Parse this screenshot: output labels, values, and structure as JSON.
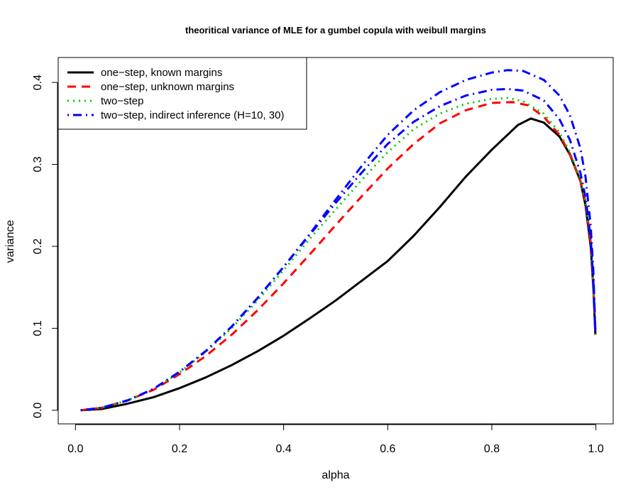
{
  "chart_data": {
    "type": "line",
    "title": "theoritical variance of MLE for a gumbel copula with weibull margins",
    "xlabel": "alpha",
    "ylabel": "variance",
    "xlim": [
      -0.0332,
      1.0332
    ],
    "ylim": [
      -0.0166,
      0.4304
    ],
    "xticks": [
      0.0,
      0.2,
      0.4,
      0.6,
      0.8,
      1.0
    ],
    "xtick_labels": [
      "0.0",
      "0.2",
      "0.4",
      "0.6",
      "0.8",
      "1.0"
    ],
    "yticks": [
      0.0,
      0.1,
      0.2,
      0.3,
      0.4
    ],
    "ytick_labels": [
      "0.0",
      "0.1",
      "0.2",
      "0.3",
      "0.4"
    ],
    "grid": false,
    "legend_position": "top-left",
    "series": [
      {
        "name": "one−step, known margins",
        "color": "#000000",
        "dash": "solid",
        "x": [
          0.01,
          0.05,
          0.1,
          0.15,
          0.2,
          0.25,
          0.3,
          0.35,
          0.4,
          0.45,
          0.5,
          0.55,
          0.6,
          0.65,
          0.7,
          0.75,
          0.8,
          0.85,
          0.875,
          0.9,
          0.93,
          0.95,
          0.97,
          0.98,
          0.99,
          0.995,
          0.999
        ],
        "y": [
          0.0,
          0.0015,
          0.008,
          0.016,
          0.027,
          0.04,
          0.055,
          0.072,
          0.091,
          0.112,
          0.134,
          0.158,
          0.182,
          0.213,
          0.248,
          0.285,
          0.318,
          0.348,
          0.356,
          0.351,
          0.334,
          0.312,
          0.28,
          0.25,
          0.2,
          0.15,
          0.092
        ]
      },
      {
        "name": "one−step, unknown margins",
        "color": "#ff0000",
        "dash": "dashed",
        "x": [
          0.01,
          0.05,
          0.1,
          0.15,
          0.2,
          0.25,
          0.3,
          0.35,
          0.4,
          0.45,
          0.5,
          0.55,
          0.6,
          0.65,
          0.7,
          0.75,
          0.8,
          0.84,
          0.87,
          0.9,
          0.93,
          0.95,
          0.97,
          0.98,
          0.99,
          0.995,
          0.999
        ],
        "y": [
          0.0,
          0.003,
          0.012,
          0.025,
          0.044,
          0.066,
          0.092,
          0.122,
          0.155,
          0.19,
          0.226,
          0.261,
          0.295,
          0.325,
          0.35,
          0.366,
          0.375,
          0.376,
          0.372,
          0.358,
          0.336,
          0.313,
          0.28,
          0.255,
          0.205,
          0.155,
          0.092
        ]
      },
      {
        "name": "two−step",
        "color": "#00cd00",
        "dash": "dotted",
        "x": [
          0.01,
          0.05,
          0.1,
          0.15,
          0.2,
          0.25,
          0.3,
          0.35,
          0.4,
          0.45,
          0.5,
          0.55,
          0.6,
          0.65,
          0.7,
          0.75,
          0.8,
          0.83,
          0.86,
          0.9,
          0.93,
          0.95,
          0.97,
          0.98,
          0.99,
          0.995,
          0.999
        ],
        "y": [
          0.0,
          0.003,
          0.012,
          0.026,
          0.046,
          0.071,
          0.1,
          0.134,
          0.171,
          0.209,
          0.245,
          0.281,
          0.315,
          0.343,
          0.362,
          0.374,
          0.38,
          0.381,
          0.377,
          0.362,
          0.339,
          0.315,
          0.282,
          0.255,
          0.205,
          0.155,
          0.092
        ]
      },
      {
        "name": "two−step, indirect inference (H=10, 30)",
        "color": "#0000ff",
        "dash": "dotdash",
        "x": [
          0.01,
          0.05,
          0.1,
          0.15,
          0.2,
          0.25,
          0.3,
          0.35,
          0.4,
          0.45,
          0.5,
          0.55,
          0.6,
          0.65,
          0.7,
          0.75,
          0.8,
          0.83,
          0.86,
          0.9,
          0.93,
          0.95,
          0.97,
          0.98,
          0.99,
          0.995,
          0.999
        ],
        "y": [
          0.0,
          0.003,
          0.012,
          0.026,
          0.047,
          0.072,
          0.102,
          0.137,
          0.175,
          0.214,
          0.253,
          0.29,
          0.325,
          0.352,
          0.371,
          0.384,
          0.391,
          0.392,
          0.39,
          0.378,
          0.355,
          0.33,
          0.29,
          0.26,
          0.21,
          0.16,
          0.095
        ]
      },
      {
        "name": "",
        "color": "#0000ff",
        "dash": "dotdash",
        "x": [
          0.01,
          0.05,
          0.1,
          0.15,
          0.2,
          0.25,
          0.3,
          0.35,
          0.4,
          0.45,
          0.5,
          0.55,
          0.6,
          0.65,
          0.7,
          0.75,
          0.8,
          0.83,
          0.86,
          0.9,
          0.93,
          0.95,
          0.97,
          0.98,
          0.99,
          0.995,
          0.999
        ],
        "y": [
          0.0,
          0.003,
          0.012,
          0.026,
          0.047,
          0.072,
          0.102,
          0.137,
          0.175,
          0.215,
          0.257,
          0.298,
          0.336,
          0.366,
          0.388,
          0.403,
          0.412,
          0.415,
          0.414,
          0.403,
          0.384,
          0.36,
          0.32,
          0.285,
          0.225,
          0.17,
          0.098
        ]
      }
    ]
  }
}
